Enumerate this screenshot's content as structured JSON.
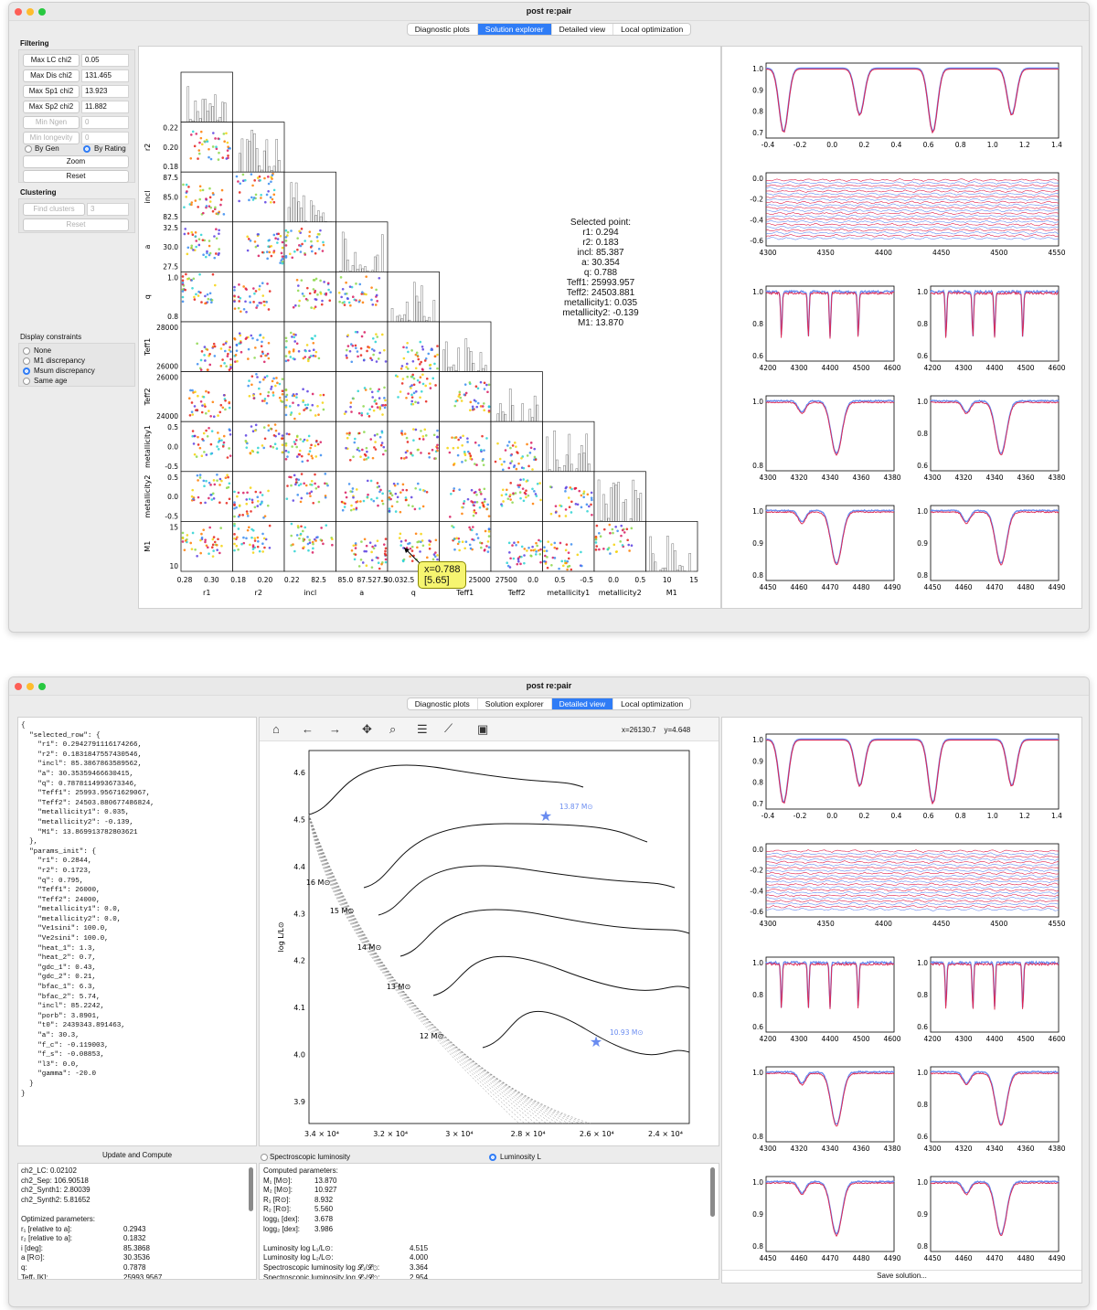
{
  "windows": [
    {
      "title": "post re:pair",
      "tabs": [
        "Diagnostic plots",
        "Solution explorer",
        "Detailed view",
        "Local optimization"
      ],
      "active_tab": 1
    },
    {
      "title": "post re:pair",
      "tabs": [
        "Diagnostic plots",
        "Solution explorer",
        "Detailed view",
        "Local optimization"
      ],
      "active_tab": 2
    }
  ],
  "filtering": {
    "header": "Filtering",
    "fields": [
      {
        "label": "Max LC chi2",
        "value": "0.05"
      },
      {
        "label": "Max Dis chi2",
        "value": "131.465"
      },
      {
        "label": "Max Sp1 chi2",
        "value": "13.923"
      },
      {
        "label": "Max Sp2 chi2",
        "value": "11.882"
      },
      {
        "label": "Min Ngen",
        "value": "0"
      },
      {
        "label": "Min longevity",
        "value": "0"
      }
    ],
    "by_gen": "By Gen",
    "by_rating": "By Rating",
    "zoom": "Zoom",
    "reset": "Reset"
  },
  "clustering": {
    "header": "Clustering",
    "find_clusters": "Find clusters",
    "clusters_value": "3",
    "reset": "Reset"
  },
  "display_constraints": {
    "header": "Display constraints",
    "options": [
      "None",
      "M1 discrepancy",
      "Msum discrepancy",
      "Same age"
    ],
    "selected": 2
  },
  "corner_plot": {
    "params": [
      "r1",
      "r2",
      "incl",
      "a",
      "q",
      "Teff1",
      "Teff2",
      "metallicity1",
      "metallicity2",
      "M1"
    ],
    "y_ticks": {
      "r2": [
        "0.22",
        "0.20",
        "0.18"
      ],
      "incl": [
        "87.5",
        "85.0",
        "82.5"
      ],
      "a": [
        "32.5",
        "30.0",
        "27.5"
      ],
      "q": [
        "1.0",
        "0.8"
      ],
      "Teff1": [
        "28000",
        "26000"
      ],
      "Teff2": [
        "26000",
        "24000"
      ],
      "metallicity1": [
        "0.5",
        "0.0",
        "-0.5"
      ],
      "metallicity2": [
        "0.5",
        "0.0",
        "-0.5"
      ],
      "M1": [
        "15",
        "10"
      ]
    },
    "y_labels": [
      "r2",
      "incl",
      "a",
      "q",
      "Teff1",
      "Teff2",
      "metallicity1",
      "metallicity2",
      "M1"
    ],
    "x_ticks": [
      "0.28",
      "0.30",
      "0.18",
      "0.20",
      "0.22",
      "82.5",
      "85.0",
      "87.527.5",
      "30.032.5",
      "0.8",
      "28000",
      "25000",
      "27500",
      "0.0",
      "0.5",
      "-0.5",
      "0.0",
      "0.5",
      "10",
      "15"
    ],
    "tooltip_line1": "x=0.788",
    "tooltip_line2": "[5.65]"
  },
  "selected_point": {
    "title": "Selected point:",
    "lines": [
      "r1: 0.294",
      "r2: 0.183",
      "incl: 85.387",
      "a: 30.354",
      "q: 0.788",
      "Teff1: 25993.957",
      "Teff2: 24503.881",
      "metallicity1: 0.035",
      "metallicity2: -0.139",
      "M1: 13.870"
    ]
  },
  "right_plots": {
    "lc_xticks": [
      "-0.4",
      "-0.2",
      "0.0",
      "0.2",
      "0.4",
      "0.6",
      "0.8",
      "1.0",
      "1.2",
      "1.4"
    ],
    "lc_yticks": [
      "1.0",
      "0.9",
      "0.8",
      "0.7"
    ],
    "rv_xticks": [
      "4300",
      "4350",
      "4400",
      "4450",
      "4500",
      "4550"
    ],
    "rv_yticks": [
      "0.0",
      "-0.2",
      "-0.4",
      "-0.6"
    ],
    "sp_a_xticks": [
      "4200",
      "4300",
      "4400",
      "4500",
      "4600"
    ],
    "sp_a_yticks": [
      "1.0",
      "0.8",
      "0.6"
    ],
    "sp_b_xticks": [
      "4300",
      "4320",
      "4340",
      "4360",
      "4380"
    ],
    "sp_b_yticks_left": [
      "1.0",
      "0.8"
    ],
    "sp_b_yticks_right": [
      "1.0",
      "0.8",
      "0.6"
    ],
    "sp_c_xticks": [
      "4450",
      "4460",
      "4470",
      "4480",
      "4490"
    ],
    "sp_c_yticks": [
      "1.0",
      "0.9",
      "0.8"
    ],
    "save_solution": "Save solution..."
  },
  "detailed": {
    "json_text": "{\n  \"selected_row\": {\n    \"r1\": 0.2942791116174266,\n    \"r2\": 0.1831847557430546,\n    \"incl\": 85.3867863589562,\n    \"a\": 30.35359466630415,\n    \"q\": 0.7878114993673346,\n    \"Teff1\": 25993.95671629067,\n    \"Teff2\": 24503.880677486824,\n    \"metallicity1\": 0.035,\n    \"metallicity2\": -0.139,\n    \"M1\": 13.869913782803621\n  },\n  \"params_init\": {\n    \"r1\": 0.2844,\n    \"r2\": 0.1723,\n    \"q\": 0.795,\n    \"Teff1\": 26000,\n    \"Teff2\": 24000,\n    \"metallicity1\": 0.0,\n    \"metallicity2\": 0.0,\n    \"Ve1sini\": 100.0,\n    \"Ve2sini\": 100.0,\n    \"heat_1\": 1.3,\n    \"heat_2\": 0.7,\n    \"gdc_1\": 0.43,\n    \"gdc_2\": 0.21,\n    \"bfac_1\": 6.3,\n    \"bfac_2\": 5.74,\n    \"incl\": 85.2242,\n    \"porb\": 3.8901,\n    \"t0\": 2439343.891463,\n    \"a\": 30.3,\n    \"f_c\": -0.119003,\n    \"f_s\": -0.08853,\n    \"l3\": 0.0,\n    \"gamma\": -20.0\n  }\n}",
    "coords": "x=26130.7    y=4.648",
    "hrd_yticks": [
      "4.6",
      "4.5",
      "4.4",
      "4.3",
      "4.2",
      "4.1",
      "4.0",
      "3.9"
    ],
    "hrd_xticks": [
      "3.4 × 10⁴",
      "3.2 × 10⁴",
      "3 × 10⁴",
      "2.8 × 10⁴",
      "2.6 × 10⁴",
      "2.4 × 10⁴"
    ],
    "hrd_ylabel": "log L/L⊙",
    "track_labels": [
      "16 M⊙",
      "15 M⊙",
      "14 M⊙",
      "13 M⊙",
      "12 M⊙"
    ],
    "star_labels": [
      "13.87 M⊙",
      "10.93 M⊙"
    ],
    "update_button": "Update and Compute",
    "radio_spectroscopic": "Spectroscopic luminosity",
    "radio_luminosity": "Luminosity L",
    "chi2_lines": [
      "ch2_LC: 0.02102",
      "ch2_Sep: 106.90518",
      "ch2_Synth1: 2.80039",
      "ch2_Synth2: 5.81652",
      "",
      "Optimized parameters:"
    ],
    "opt_params": [
      [
        "r₁ [relative to a]:",
        "0.2943"
      ],
      [
        "r₂ [relative to a]:",
        "0.1832"
      ],
      [
        "i [deg]:",
        "85.3868"
      ],
      [
        "a [R⊙]:",
        "30.3536"
      ],
      [
        "q:",
        "0.7878"
      ],
      [
        "Teff₁ [K]:",
        "25993.9567"
      ]
    ],
    "computed_header": "Computed parameters:",
    "computed": [
      [
        "M₁ [M⊙]:",
        "13.870"
      ],
      [
        "M₂ [M⊙]:",
        "10.927"
      ],
      [
        "R₁ [R⊙]:",
        "8.932"
      ],
      [
        "R₂ [R⊙]:",
        "5.560"
      ],
      [
        "logg₁ [dex]:",
        "3.678"
      ],
      [
        "logg₂ [dex]:",
        "3.986"
      ]
    ],
    "lum_lines": [
      [
        "Luminosity log L₁/L⊙:",
        "4.515"
      ],
      [
        "Luminosity log L₂/L⊙:",
        "4.000"
      ],
      [
        "Spectroscopic luminosity log 𝓛₁/𝓛⊙:",
        "3.364"
      ],
      [
        "Spectroscopic luminosity log 𝓛₂/𝓛⊙:",
        "2.954"
      ]
    ]
  },
  "colors": {
    "accent": "#2f7cf6",
    "model": "#e0234e",
    "observed": "#6a8cf0",
    "tooltip": "#f6f570"
  }
}
